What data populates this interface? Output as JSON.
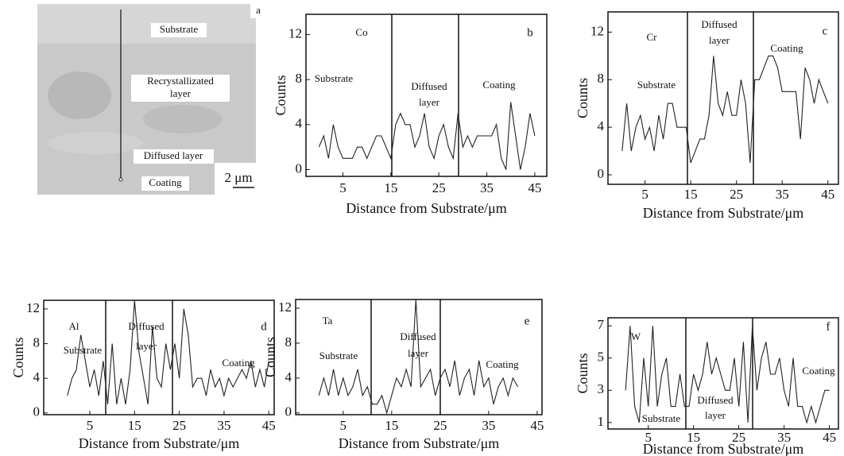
{
  "image_panel": {
    "panel": "a",
    "labels": [
      "Substrate",
      "Recrystallizated",
      "layer",
      "Diffused layer",
      "Coating"
    ],
    "scale_bar": "2 μm"
  },
  "chart_data": [
    {
      "type": "line",
      "panel": "b",
      "annotations": [
        "Co",
        "Substrate",
        "Diffused",
        "layer",
        "Coating"
      ],
      "x_label": "Distance from Substrate/μm",
      "y_label": "Counts",
      "xlim": [
        -2.7,
        47.5
      ],
      "ylim": [
        -0.6,
        13.8
      ],
      "xticks": [
        5,
        15,
        25,
        35,
        45
      ],
      "yticks": [
        0,
        4,
        8,
        12
      ],
      "color": "#222222",
      "x": [
        0,
        1,
        2,
        3,
        4,
        5,
        6,
        7,
        8,
        9,
        10,
        11,
        12,
        13,
        14,
        15,
        16,
        17,
        18,
        19,
        20,
        21,
        22,
        23,
        24,
        25,
        26,
        27,
        28,
        29,
        30,
        31,
        32,
        33,
        34,
        35,
        36,
        37,
        38,
        39,
        40,
        41,
        42,
        43,
        44,
        45
      ],
      "values": [
        2,
        3,
        1,
        4,
        2,
        1,
        1,
        1,
        2,
        2,
        1,
        2,
        3,
        3,
        2,
        1,
        4,
        5,
        4,
        4,
        2,
        3,
        5,
        2,
        1,
        3,
        4,
        2,
        1,
        5,
        2,
        3,
        2,
        3,
        3,
        3,
        3,
        4,
        1,
        0,
        6,
        3,
        0,
        2,
        5,
        3
      ]
    },
    {
      "type": "line",
      "panel": "c",
      "annotations": [
        "Cr",
        "Diffused",
        "layer",
        "Substrate",
        "Coating"
      ],
      "x_label": "Distance from Substrate/μm",
      "y_label": "Counts",
      "xlim": [
        -3.1,
        47.3
      ],
      "ylim": [
        -0.8,
        13.7
      ],
      "xticks": [
        5,
        15,
        25,
        35,
        45
      ],
      "yticks": [
        0,
        4,
        8,
        12
      ],
      "color": "#222222",
      "x": [
        0,
        1,
        2,
        3,
        4,
        5,
        6,
        7,
        8,
        9,
        10,
        11,
        12,
        13,
        14,
        15,
        16,
        17,
        18,
        19,
        20,
        21,
        22,
        23,
        24,
        25,
        26,
        27,
        28,
        29,
        30,
        31,
        32,
        33,
        34,
        35,
        36,
        37,
        38,
        39,
        40,
        41,
        42,
        43,
        44,
        45
      ],
      "values": [
        2,
        6,
        2,
        4,
        5,
        3,
        4,
        2,
        5,
        3,
        6,
        6,
        4,
        4,
        4,
        1,
        2,
        3,
        3,
        5,
        10,
        6,
        5,
        7,
        5,
        5,
        8,
        6,
        1,
        8,
        8,
        9,
        10,
        10,
        9,
        7,
        7,
        7,
        7,
        3,
        9,
        8,
        6,
        8,
        7,
        6
      ]
    },
    {
      "type": "line",
      "panel": "d",
      "annotations": [
        "Al",
        "Substrate",
        "Diffused",
        "layer",
        "Coating"
      ],
      "x_label": "Distance from Substrate/μm",
      "y_label": "Counts",
      "xlim": [
        -5.3,
        46.2
      ],
      "ylim": [
        -0.2,
        13.0
      ],
      "xticks": [
        5,
        15,
        25,
        35,
        45
      ],
      "yticks": [
        0,
        4,
        8,
        12
      ],
      "color": "#222222",
      "x": [
        0,
        1,
        2,
        3,
        4,
        5,
        6,
        7,
        8,
        9,
        10,
        11,
        12,
        13,
        14,
        15,
        16,
        17,
        18,
        19,
        20,
        21,
        22,
        23,
        24,
        25,
        26,
        27,
        28,
        29,
        30,
        31,
        32,
        33,
        34,
        35,
        36,
        37,
        38,
        39,
        40,
        41,
        42,
        43,
        44,
        45
      ],
      "values": [
        2,
        4,
        5,
        9,
        6,
        3,
        5,
        2,
        6,
        1,
        8,
        1,
        4,
        1,
        5,
        13,
        7,
        4,
        1,
        10,
        4,
        3,
        8,
        5,
        8,
        4,
        12,
        9,
        3,
        4,
        4,
        2,
        5,
        3,
        4,
        2,
        4,
        3,
        4,
        5,
        4,
        6,
        3,
        5,
        3,
        6
      ]
    },
    {
      "type": "line",
      "panel": "e",
      "annotations": [
        "Ta",
        "Substrate",
        "Diffused",
        "layer",
        "Coating"
      ],
      "x_label": "Distance from Substrate/μm",
      "y_label": "Counts",
      "xlim": [
        -4.8,
        46.0
      ],
      "ylim": [
        -0.2,
        13.0
      ],
      "xticks": [
        5,
        15,
        25,
        35,
        45
      ],
      "yticks": [
        0,
        4,
        8,
        12
      ],
      "color": "#222222",
      "x": [
        0,
        1,
        2,
        3,
        4,
        5,
        6,
        7,
        8,
        9,
        10,
        11,
        12,
        13,
        14,
        15,
        16,
        17,
        18,
        19,
        20,
        21,
        22,
        23,
        24,
        25,
        26,
        27,
        28,
        29,
        30,
        31,
        32,
        33,
        34,
        35,
        36,
        37,
        38,
        39,
        40,
        41
      ],
      "values": [
        2,
        4,
        2,
        5,
        2,
        4,
        2,
        3,
        5,
        2,
        3,
        1,
        1,
        2,
        0,
        2,
        4,
        3,
        5,
        3,
        13,
        3,
        4,
        5,
        2,
        4,
        5,
        3,
        6,
        2,
        4,
        5,
        2,
        6,
        3,
        4,
        1,
        3,
        4,
        2,
        4,
        3
      ]
    },
    {
      "type": "line",
      "panel": "f",
      "annotations": [
        "W",
        "Coating",
        "Substrate",
        "Diffused",
        "layer"
      ],
      "x_label": "Distance from Substrate/μm",
      "y_label": "Counts",
      "xlim": [
        -3.9,
        47.0
      ],
      "ylim": [
        0.6,
        7.5
      ],
      "xticks": [
        5,
        15,
        25,
        35,
        45
      ],
      "yticks": [
        1,
        3,
        5,
        7
      ],
      "color": "#222222",
      "x": [
        0,
        1,
        2,
        3,
        4,
        5,
        6,
        7,
        8,
        9,
        10,
        11,
        12,
        13,
        14,
        15,
        16,
        17,
        18,
        19,
        20,
        21,
        22,
        23,
        24,
        25,
        26,
        27,
        28,
        29,
        30,
        31,
        32,
        33,
        34,
        35,
        36,
        37,
        38,
        39,
        40,
        41,
        42,
        43,
        44,
        45
      ],
      "values": [
        3,
        7,
        2,
        1,
        5,
        2,
        7,
        2,
        4,
        5,
        2,
        2,
        4,
        2,
        2,
        4,
        3,
        4,
        6,
        4,
        5,
        4,
        3,
        3,
        5,
        2,
        6,
        1,
        7,
        3,
        5,
        6,
        4,
        4,
        5,
        3,
        2,
        5,
        2,
        2,
        1,
        2,
        1,
        2,
        3,
        3
      ]
    }
  ]
}
